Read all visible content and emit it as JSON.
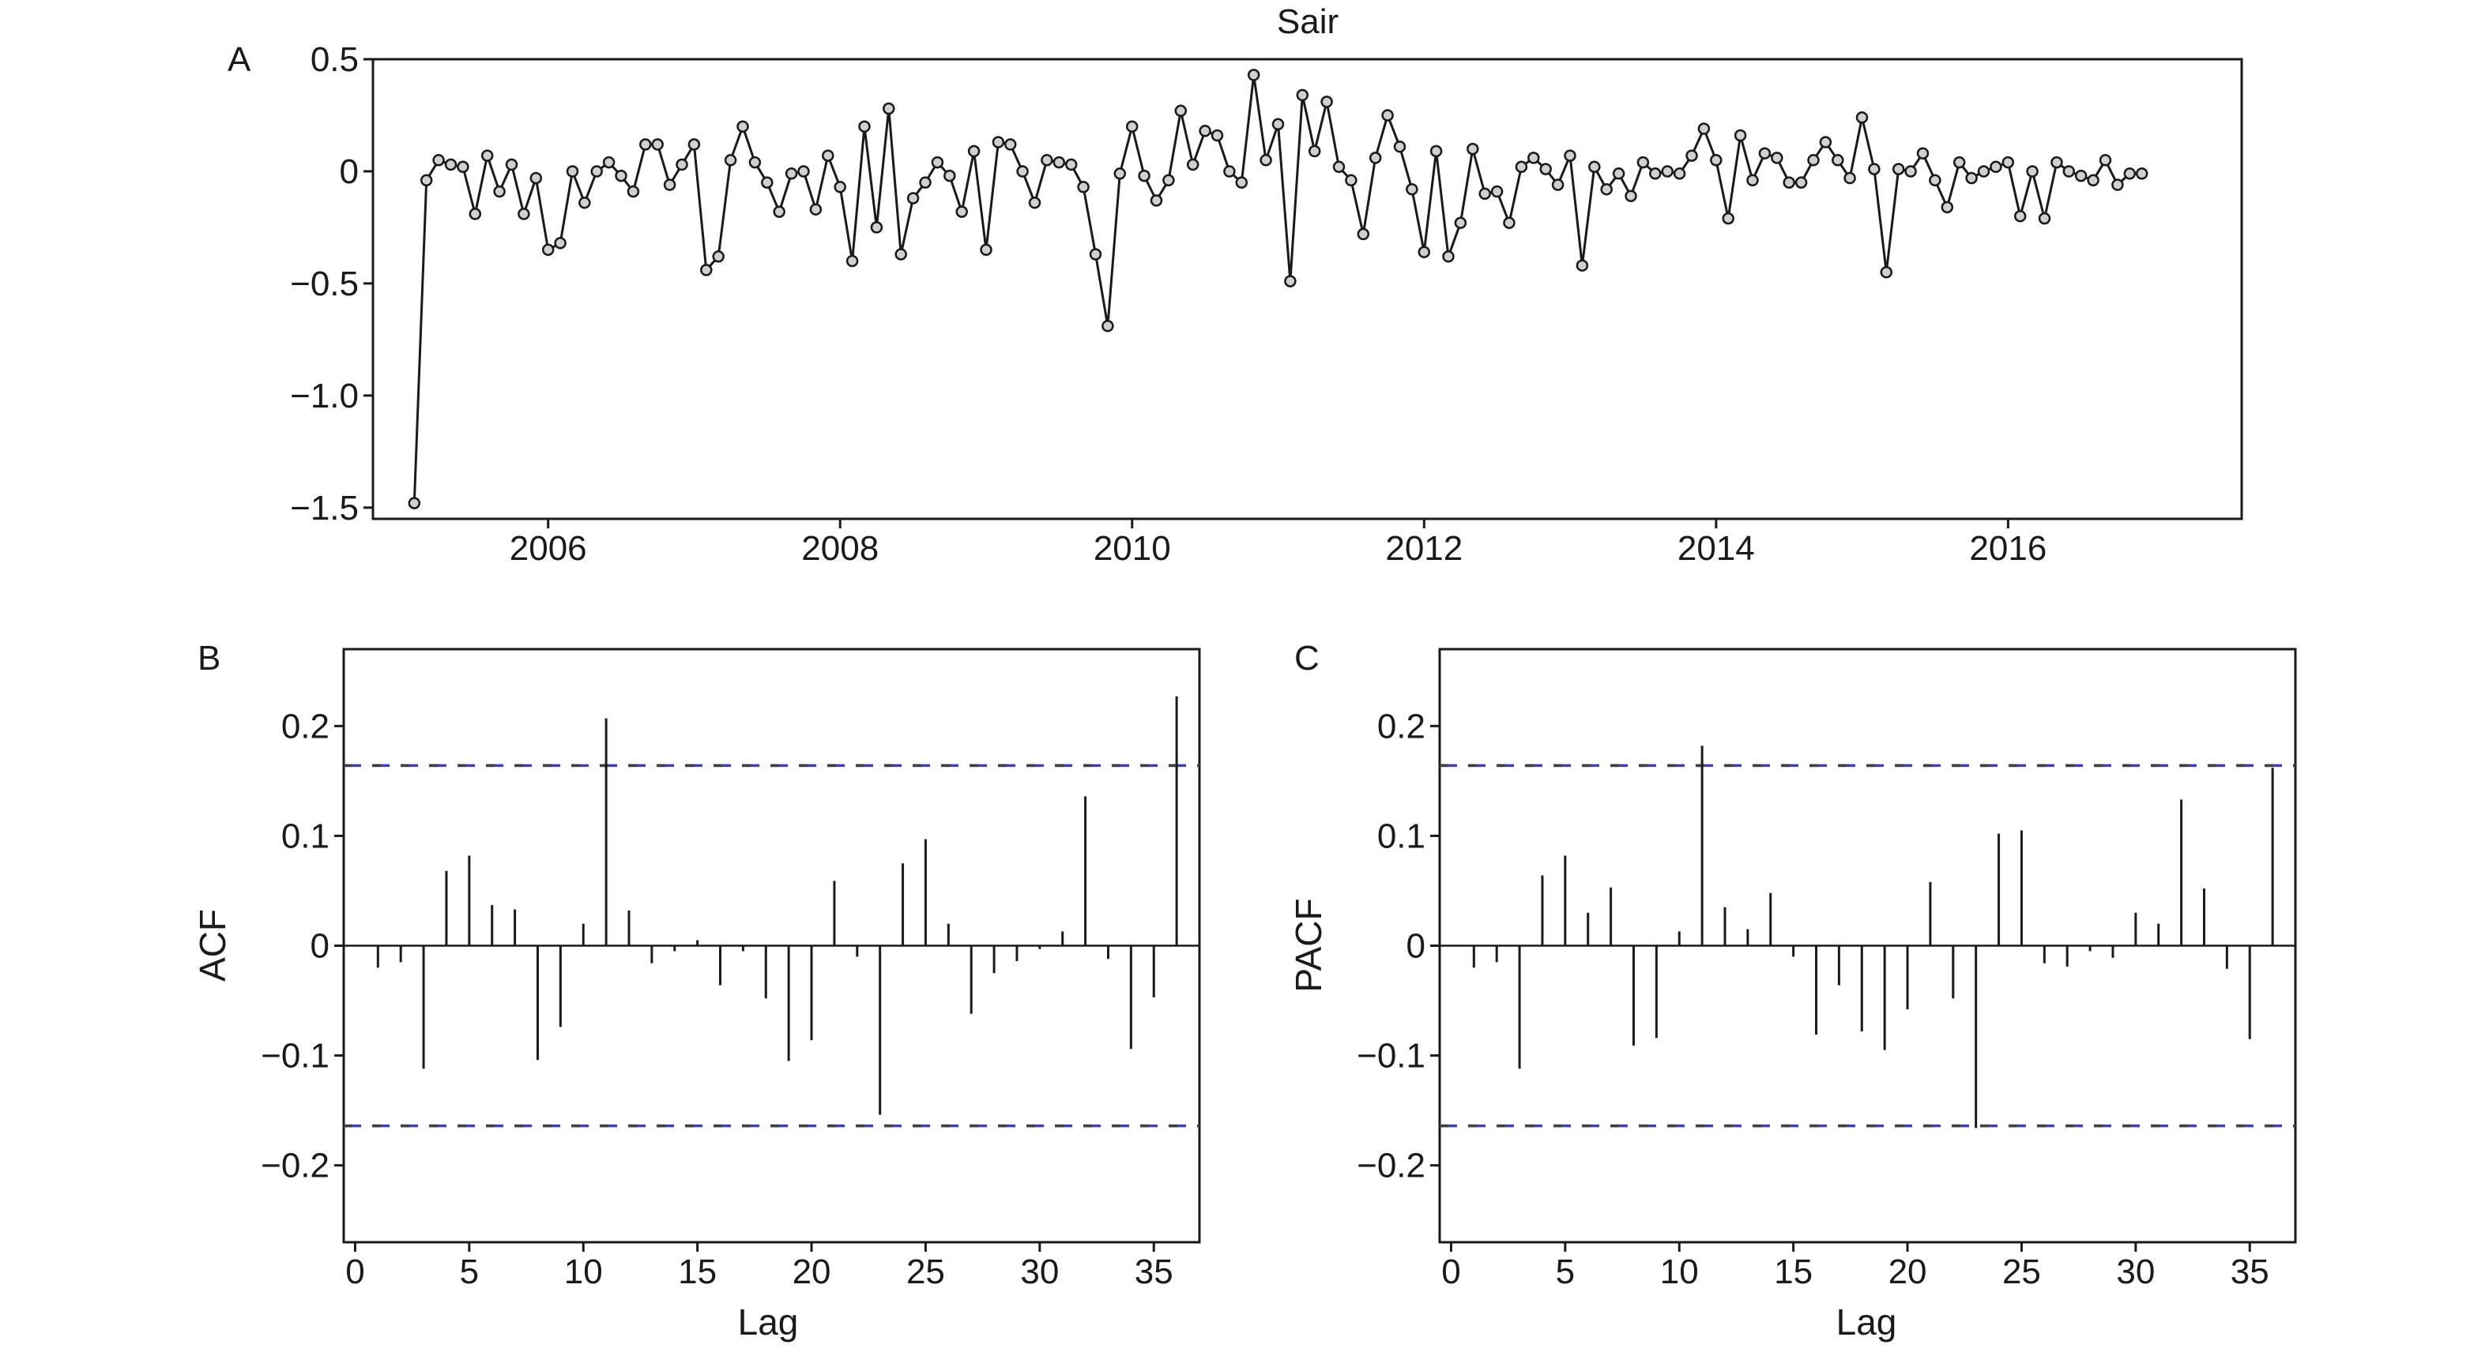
{
  "chart_data": [
    {
      "panel": "A",
      "type": "line",
      "title": "Sair",
      "xlabel": "",
      "ylabel": "",
      "xlim": [
        2004.8,
        2017.6
      ],
      "ylim": [
        -1.55,
        0.5
      ],
      "x_ticks": [
        2006,
        2008,
        2010,
        2012,
        2014,
        2016
      ],
      "x_tick_labels": [
        "2006",
        "2008",
        "2010",
        "2012",
        "2014",
        "2016"
      ],
      "y_ticks": [
        0.5,
        0,
        -0.5,
        -1.0,
        -1.5
      ],
      "y_tick_labels": [
        "0.5",
        "0",
        "−0.5",
        "−1.0",
        "−1.5"
      ],
      "grid": false,
      "marker": "circle",
      "x_start": 2005.083,
      "x_step": 0.0833333,
      "values": [
        -1.48,
        -0.04,
        0.05,
        0.03,
        0.02,
        -0.19,
        0.07,
        -0.09,
        0.03,
        -0.19,
        -0.03,
        -0.35,
        -0.32,
        0.0,
        -0.14,
        0.0,
        0.04,
        -0.02,
        -0.09,
        0.12,
        0.12,
        -0.06,
        0.03,
        0.12,
        -0.44,
        -0.38,
        0.05,
        0.2,
        0.04,
        -0.05,
        -0.18,
        -0.01,
        0.0,
        -0.17,
        0.07,
        -0.07,
        -0.4,
        0.2,
        -0.25,
        0.28,
        -0.37,
        -0.12,
        -0.05,
        0.04,
        -0.02,
        -0.18,
        0.09,
        -0.35,
        0.13,
        0.12,
        0.0,
        -0.14,
        0.05,
        0.04,
        0.03,
        -0.07,
        -0.37,
        -0.69,
        -0.01,
        0.2,
        -0.02,
        -0.13,
        -0.04,
        0.27,
        0.03,
        0.18,
        0.16,
        0.0,
        -0.05,
        0.43,
        0.05,
        0.21,
        -0.49,
        0.34,
        0.09,
        0.31,
        0.02,
        -0.04,
        -0.28,
        0.06,
        0.25,
        0.11,
        -0.08,
        -0.36,
        0.09,
        -0.38,
        -0.23,
        0.1,
        -0.1,
        -0.09,
        -0.23,
        0.02,
        0.06,
        0.01,
        -0.06,
        0.07,
        -0.42,
        0.02,
        -0.08,
        -0.01,
        -0.11,
        0.04,
        -0.01,
        0.0,
        -0.01,
        0.07,
        0.19,
        0.05,
        -0.21,
        0.16,
        -0.04,
        0.08,
        0.06,
        -0.05,
        -0.05,
        0.05,
        0.13,
        0.05,
        -0.03,
        0.24,
        0.01,
        -0.45,
        0.01,
        0.0,
        0.08,
        -0.04,
        -0.16,
        0.04,
        -0.03,
        0.0,
        0.02,
        0.04,
        -0.2,
        0.0,
        -0.21,
        0.04,
        0.0,
        -0.02,
        -0.04,
        0.05,
        -0.06,
        -0.01,
        -0.01
      ]
    },
    {
      "panel": "B",
      "type": "bar",
      "title": "",
      "xlabel": "Lag",
      "ylabel": "ACF",
      "xlim": [
        -0.5,
        37.0
      ],
      "ylim": [
        -0.27,
        0.27
      ],
      "x_ticks": [
        0,
        5,
        10,
        15,
        20,
        25,
        30,
        35
      ],
      "x_tick_labels": [
        "0",
        "5",
        "10",
        "15",
        "20",
        "25",
        "30",
        "35"
      ],
      "y_ticks": [
        0.2,
        0.1,
        0,
        -0.1,
        -0.2
      ],
      "y_tick_labels": [
        "0.2",
        "0.1",
        "0",
        "−0.1",
        "−0.2"
      ],
      "grid": false,
      "confidence_bound": 0.164,
      "lags": [
        1,
        2,
        3,
        4,
        5,
        6,
        7,
        8,
        9,
        10,
        11,
        12,
        13,
        14,
        15,
        16,
        17,
        18,
        19,
        20,
        21,
        22,
        23,
        24,
        25,
        26,
        27,
        28,
        29,
        30,
        31,
        32,
        33,
        34,
        35,
        36
      ],
      "values": [
        -0.02,
        -0.015,
        -0.112,
        0.068,
        0.082,
        0.037,
        0.033,
        -0.104,
        -0.074,
        0.02,
        0.207,
        0.032,
        -0.016,
        -0.005,
        0.005,
        -0.036,
        -0.005,
        -0.048,
        -0.105,
        -0.086,
        0.059,
        -0.01,
        -0.154,
        0.075,
        0.097,
        0.02,
        -0.062,
        -0.025,
        -0.014,
        -0.003,
        0.013,
        0.136,
        -0.012,
        -0.094,
        -0.047,
        0.227
      ]
    },
    {
      "panel": "C",
      "type": "bar",
      "title": "",
      "xlabel": "Lag",
      "ylabel": "PACF",
      "xlim": [
        -0.5,
        37.0
      ],
      "ylim": [
        -0.27,
        0.27
      ],
      "x_ticks": [
        0,
        5,
        10,
        15,
        20,
        25,
        30,
        35
      ],
      "x_tick_labels": [
        "0",
        "5",
        "10",
        "15",
        "20",
        "25",
        "30",
        "35"
      ],
      "y_ticks": [
        0.2,
        0.1,
        0,
        -0.1,
        -0.2
      ],
      "y_tick_labels": [
        "0.2",
        "0.1",
        "0",
        "−0.1",
        "−0.2"
      ],
      "grid": false,
      "confidence_bound": 0.164,
      "lags": [
        1,
        2,
        3,
        4,
        5,
        6,
        7,
        8,
        9,
        10,
        11,
        12,
        13,
        14,
        15,
        16,
        17,
        18,
        19,
        20,
        21,
        22,
        23,
        24,
        25,
        26,
        27,
        28,
        29,
        30,
        31,
        32,
        33,
        34,
        35,
        36
      ],
      "values": [
        -0.02,
        -0.015,
        -0.112,
        0.064,
        0.082,
        0.03,
        0.053,
        -0.091,
        -0.084,
        0.013,
        0.182,
        0.035,
        0.015,
        0.048,
        -0.01,
        -0.081,
        -0.036,
        -0.078,
        -0.095,
        -0.058,
        0.058,
        -0.048,
        -0.166,
        0.102,
        0.105,
        -0.016,
        -0.019,
        -0.005,
        -0.011,
        0.03,
        0.02,
        0.133,
        0.052,
        -0.021,
        -0.085,
        0.162
      ]
    }
  ],
  "colors": {
    "axes": "#1a1a1a",
    "marker_fill": "#d0d0d0",
    "confidence_line": "#4040b0",
    "confidence_line_alt": "#404040"
  }
}
